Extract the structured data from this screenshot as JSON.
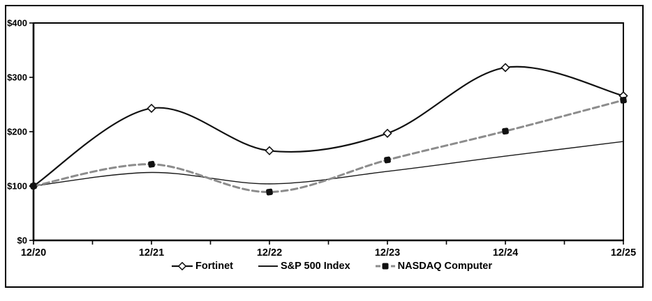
{
  "figure": {
    "background": "#ffffff",
    "frame_color": "#000000",
    "axis_color": "#000000",
    "text_color": "#000000"
  },
  "chart_data": {
    "type": "line",
    "title": "",
    "xlabel": "",
    "ylabel": "",
    "categories": [
      "12/20",
      "12/21",
      "12/22",
      "12/23",
      "12/24",
      "12/25"
    ],
    "series": [
      {
        "name": "Fortinet",
        "values": [
          100,
          243,
          165,
          197,
          318,
          266
        ],
        "color": "#111111",
        "line_width": 2.2,
        "dash": "",
        "smooth": true,
        "marker": "diamond",
        "marker_fill": "#ffffff",
        "marker_stroke": "#111111"
      },
      {
        "name": "S&P 500 Index",
        "values": [
          100,
          125,
          104,
          127,
          155,
          182
        ],
        "color": "#1a1a1a",
        "line_width": 1.4,
        "dash": "",
        "smooth": true,
        "marker": "none",
        "marker_fill": "",
        "marker_stroke": ""
      },
      {
        "name": "NASDAQ Computer",
        "values": [
          100,
          140,
          89,
          148,
          201,
          258
        ],
        "color": "#8c8c8c",
        "line_width": 3,
        "dash": "9 5",
        "smooth": true,
        "marker": "square",
        "marker_fill": "#111111",
        "marker_stroke": "#111111"
      }
    ],
    "ylim": [
      0,
      400
    ],
    "yticks": [
      {
        "value": 0,
        "label": "$0"
      },
      {
        "value": 100,
        "label": "$100"
      },
      {
        "value": 200,
        "label": "$200"
      },
      {
        "value": 300,
        "label": "$300"
      },
      {
        "value": 400,
        "label": "$400"
      }
    ],
    "grid": false,
    "legend_position": "bottom"
  }
}
